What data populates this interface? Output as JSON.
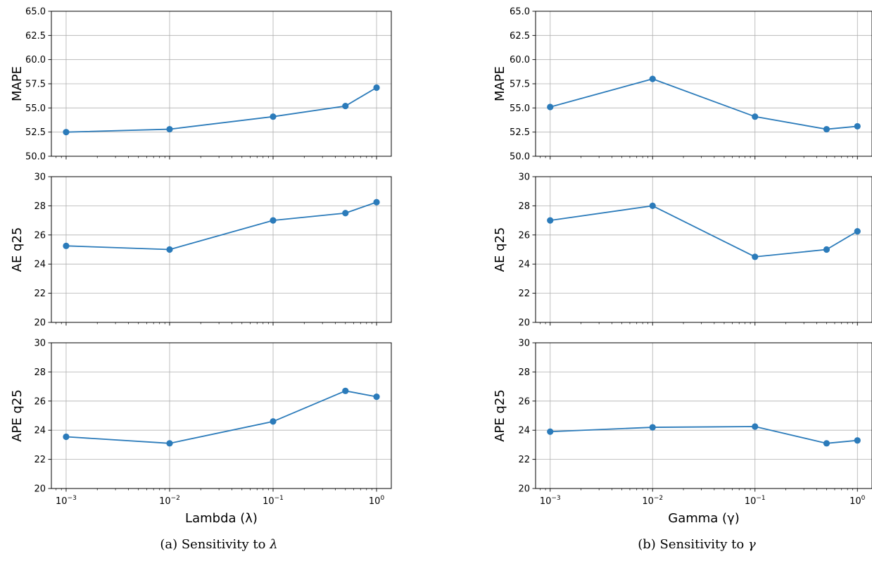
{
  "figure": {
    "line_color": "#2b7bba",
    "grid_color": "#b0b0b0"
  },
  "chart_data": [
    {
      "type": "line",
      "panel": "a-top",
      "x": [
        0.001,
        0.01,
        0.1,
        0.5,
        1.0
      ],
      "y": [
        52.5,
        52.8,
        54.1,
        55.2,
        57.1
      ],
      "ylabel": "MAPE",
      "xlabel": "",
      "xscale": "log",
      "ylim": [
        50.0,
        65.0
      ],
      "yticks": [
        "50.0",
        "52.5",
        "55.0",
        "57.5",
        "60.0",
        "62.5",
        "65.0"
      ],
      "grid": true
    },
    {
      "type": "line",
      "panel": "a-middle",
      "x": [
        0.001,
        0.01,
        0.1,
        0.5,
        1.0
      ],
      "y": [
        25.25,
        25.0,
        27.0,
        27.5,
        28.25
      ],
      "ylabel": "AE q25",
      "xlabel": "",
      "xscale": "log",
      "ylim": [
        20,
        30
      ],
      "yticks": [
        "20",
        "22",
        "24",
        "26",
        "28",
        "30"
      ],
      "grid": true
    },
    {
      "type": "line",
      "panel": "a-bottom",
      "x": [
        0.001,
        0.01,
        0.1,
        0.5,
        1.0
      ],
      "y": [
        23.55,
        23.1,
        24.6,
        26.7,
        26.3
      ],
      "ylabel": "APE q25",
      "xlabel": "Lambda (λ)",
      "xscale": "log",
      "ylim": [
        20,
        30
      ],
      "yticks": [
        "20",
        "22",
        "24",
        "26",
        "28",
        "30"
      ],
      "grid": true
    },
    {
      "type": "line",
      "panel": "b-top",
      "x": [
        0.001,
        0.01,
        0.1,
        0.5,
        1.0
      ],
      "y": [
        55.1,
        58.0,
        54.1,
        52.8,
        53.1
      ],
      "ylabel": "MAPE",
      "xlabel": "",
      "xscale": "log",
      "ylim": [
        50.0,
        65.0
      ],
      "yticks": [
        "50.0",
        "52.5",
        "55.0",
        "57.5",
        "60.0",
        "62.5",
        "65.0"
      ],
      "grid": true
    },
    {
      "type": "line",
      "panel": "b-middle",
      "x": [
        0.001,
        0.01,
        0.1,
        0.5,
        1.0
      ],
      "y": [
        27.0,
        28.0,
        24.5,
        25.0,
        26.25
      ],
      "ylabel": "AE q25",
      "xlabel": "",
      "xscale": "log",
      "ylim": [
        20,
        30
      ],
      "yticks": [
        "20",
        "22",
        "24",
        "26",
        "28",
        "30"
      ],
      "grid": true
    },
    {
      "type": "line",
      "panel": "b-bottom",
      "x": [
        0.001,
        0.01,
        0.1,
        0.5,
        1.0
      ],
      "y": [
        23.9,
        24.2,
        24.25,
        23.1,
        23.3
      ],
      "ylabel": "APE q25",
      "xlabel": "Gamma (γ)",
      "xscale": "log",
      "ylim": [
        20,
        30
      ],
      "yticks": [
        "20",
        "22",
        "24",
        "26",
        "28",
        "30"
      ],
      "grid": true
    }
  ],
  "xticks": {
    "base": [
      "10",
      "10",
      "10",
      "10"
    ],
    "exponents": [
      "−3",
      "−2",
      "−1",
      "0"
    ]
  },
  "captions": {
    "left_prefix": "(a) Sensitivity to ",
    "left_symbol": "λ",
    "right_prefix": "(b) Sensitivity to ",
    "right_symbol": "γ"
  }
}
